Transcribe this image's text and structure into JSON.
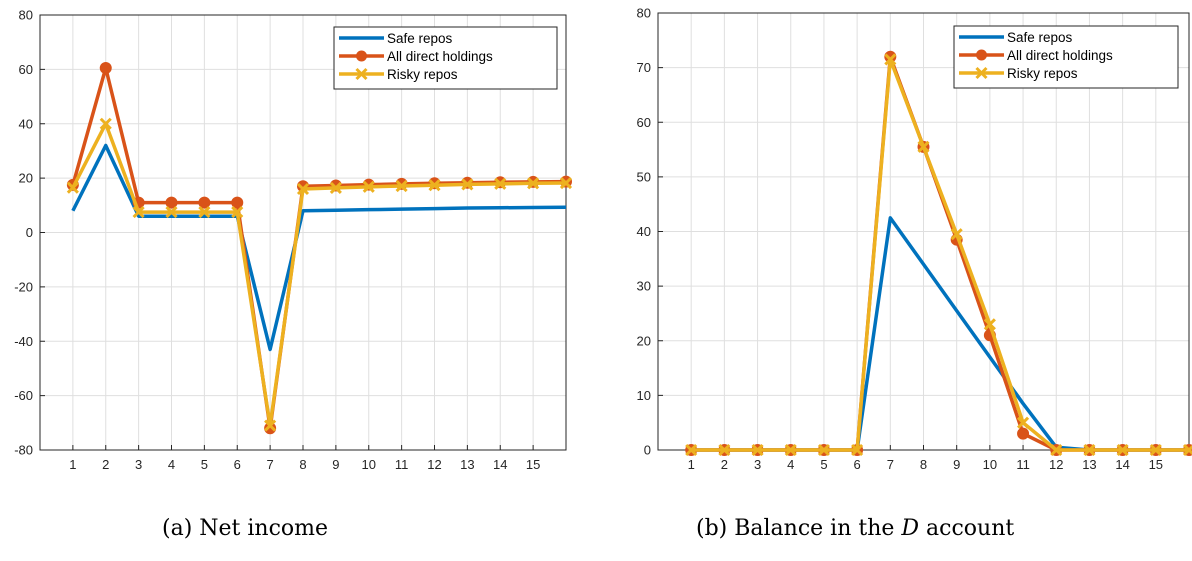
{
  "captions": {
    "a": "(a) Net income",
    "b_prefix": "(b) Balance in the ",
    "b_var": "D",
    "b_suffix": " account"
  },
  "chart_data": [
    {
      "type": "line",
      "title": "",
      "xlabel": "",
      "ylabel": "",
      "xlim": [
        0,
        16
      ],
      "ylim": [
        -80,
        80
      ],
      "xticks": [
        1,
        2,
        3,
        4,
        5,
        6,
        7,
        8,
        9,
        10,
        11,
        12,
        13,
        14,
        15
      ],
      "yticks": [
        -80,
        -60,
        -40,
        -20,
        0,
        20,
        40,
        60,
        80
      ],
      "grid": true,
      "legend": "top-right",
      "x": [
        1,
        2,
        3,
        4,
        5,
        6,
        7,
        8,
        9,
        10,
        11,
        12,
        13,
        14,
        15,
        16
      ],
      "series": [
        {
          "name": "Safe repos",
          "color": "#0072BD",
          "marker": "none",
          "values": [
            8,
            32,
            6,
            6,
            6,
            6,
            -43,
            8,
            8.2,
            8.4,
            8.6,
            8.8,
            9,
            9.1,
            9.2,
            9.3
          ]
        },
        {
          "name": "All direct holdings",
          "color": "#D95319",
          "marker": "circle",
          "values": [
            17.5,
            60.5,
            11,
            11,
            11,
            11,
            -72,
            17,
            17.3,
            17.6,
            17.9,
            18.1,
            18.3,
            18.5,
            18.6,
            18.7
          ]
        },
        {
          "name": "Risky repos",
          "color": "#EDB120",
          "marker": "x",
          "values": [
            16.5,
            40,
            7.5,
            7.5,
            7.5,
            7.5,
            -71,
            16,
            16.4,
            16.8,
            17.1,
            17.4,
            17.7,
            17.9,
            18.1,
            18.2
          ]
        }
      ]
    },
    {
      "type": "line",
      "title": "",
      "xlabel": "",
      "ylabel": "",
      "xlim": [
        0,
        16
      ],
      "ylim": [
        0,
        80
      ],
      "xticks": [
        1,
        2,
        3,
        4,
        5,
        6,
        7,
        8,
        9,
        10,
        11,
        12,
        13,
        14,
        15
      ],
      "yticks": [
        0,
        10,
        20,
        30,
        40,
        50,
        60,
        70,
        80
      ],
      "grid": true,
      "legend": "top-right",
      "x": [
        1,
        2,
        3,
        4,
        5,
        6,
        7,
        8,
        9,
        10,
        11,
        12,
        13,
        14,
        15,
        16
      ],
      "series": [
        {
          "name": "Safe repos",
          "color": "#0072BD",
          "marker": "none",
          "values": [
            0,
            0,
            0,
            0,
            0,
            0,
            42.5,
            34,
            25.5,
            17,
            8.5,
            0.5,
            0,
            0,
            0,
            0
          ]
        },
        {
          "name": "All direct holdings",
          "color": "#D95319",
          "marker": "circle",
          "values": [
            0,
            0,
            0,
            0,
            0,
            0,
            72,
            55.5,
            38.5,
            21,
            3,
            0,
            0,
            0,
            0,
            0
          ]
        },
        {
          "name": "Risky repos",
          "color": "#EDB120",
          "marker": "x",
          "values": [
            0,
            0,
            0,
            0,
            0,
            0,
            71.5,
            55.5,
            39.5,
            23,
            5,
            0,
            0,
            0,
            0,
            0
          ]
        }
      ]
    }
  ]
}
